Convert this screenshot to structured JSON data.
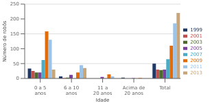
{
  "chart_data": {
    "type": "bar",
    "x_label": "Idade",
    "y_label": "Número de robôs",
    "categories": [
      "0 a 5 anos",
      "6 a 10 anos",
      "11 a 20 anos",
      "Acima de 20 anos",
      "Total"
    ],
    "series": [
      {
        "name": "1999",
        "color": "#1f3864",
        "values": [
          33,
          7,
          0,
          3,
          50
        ]
      },
      {
        "name": "2001",
        "color": "#c0504d",
        "values": [
          25,
          2,
          0,
          0,
          30
        ]
      },
      {
        "name": "2003",
        "color": "#4e6b2e",
        "values": [
          20,
          3,
          0,
          0,
          28
        ]
      },
      {
        "name": "2005",
        "color": "#7b3f9e",
        "values": [
          20,
          12,
          5,
          1,
          30
        ]
      },
      {
        "name": "2007",
        "color": "#4bacc6",
        "values": [
          62,
          0,
          0,
          0,
          65
        ]
      },
      {
        "name": "2009",
        "color": "#e36c09",
        "values": [
          158,
          20,
          14,
          2,
          110
        ]
      },
      {
        "name": "2011",
        "color": "#9dc3e6",
        "values": [
          130,
          45,
          7,
          0,
          185
        ]
      },
      {
        "name": "2013",
        "color": "#c9a57a",
        "values": [
          30,
          35,
          0,
          0,
          220
        ]
      }
    ],
    "ylim": [
      0,
      250
    ],
    "yticks": [
      0,
      50,
      100,
      150,
      200,
      250
    ],
    "grid": true,
    "legend": "right"
  }
}
